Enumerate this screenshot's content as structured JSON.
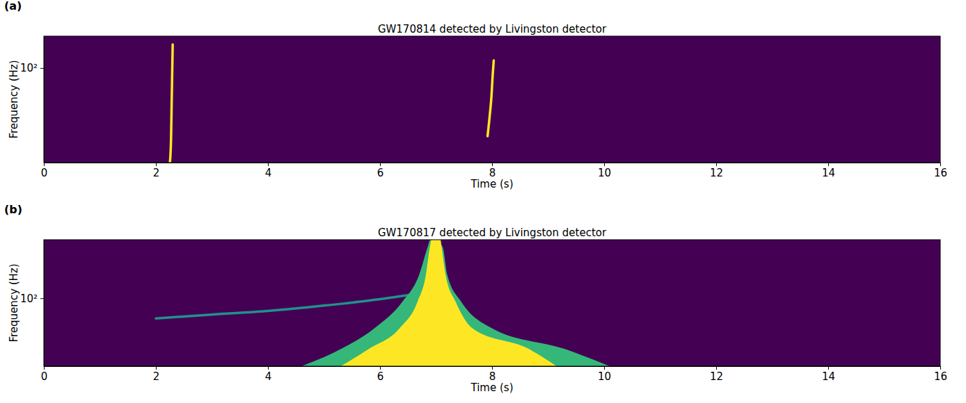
{
  "chart_data": [
    {
      "type": "line",
      "panel_label": "(a)",
      "title": "GW170814 detected by Livingston detector",
      "x_label": "Time (s)",
      "y_label": "Frequency (Hz)",
      "log": "y",
      "grid": false,
      "xlim": [
        0,
        16
      ],
      "xticks": [
        0,
        2,
        4,
        6,
        8,
        10,
        12,
        14,
        16
      ],
      "ylim": [
        30,
        150
      ],
      "yticks": [
        {
          "value": 100,
          "label": "10²"
        }
      ],
      "series": [
        {
          "type": "line",
          "color": "#fde725",
          "x": [
            2.25,
            2.27,
            2.28,
            2.29,
            2.3
          ],
          "values": [
            30,
            40,
            60,
            90,
            135
          ]
        },
        {
          "type": "line",
          "color": "#fde725",
          "x": [
            7.92,
            7.96,
            7.99,
            8.01,
            8.03
          ],
          "values": [
            42,
            55,
            70,
            90,
            110
          ]
        }
      ]
    },
    {
      "type": "line",
      "panel_label": "(b)",
      "title": "GW170817 detected by Livingston detector",
      "x_label": "Time (s)",
      "y_label": "Frequency (Hz)",
      "log": "y",
      "grid": false,
      "xlim": [
        0,
        16
      ],
      "xticks": [
        0,
        2,
        4,
        6,
        8,
        10,
        12,
        14,
        16
      ],
      "ylim": [
        20,
        400
      ],
      "yticks": [
        {
          "value": 100,
          "label": "10²"
        }
      ],
      "series": [
        {
          "type": "line",
          "color": "#21918c",
          "x": [
            2.0,
            3.0,
            4.0,
            5.0,
            6.0,
            6.6
          ],
          "values": [
            62,
            68,
            74,
            84,
            98,
            110
          ]
        },
        {
          "type": "area",
          "color": "#35b779",
          "x": [
            4.6,
            5.3,
            5.9,
            6.4,
            6.7,
            6.85,
            6.9,
            7.0,
            7.12,
            7.2,
            7.45,
            8.0,
            9.3,
            10.1
          ],
          "values": [
            20,
            30,
            49,
            92,
            175,
            335,
            400,
            400,
            335,
            175,
            92,
            49,
            30,
            20
          ]
        },
        {
          "type": "area",
          "color": "#fde725",
          "x": [
            5.3,
            5.8,
            6.35,
            6.67,
            6.82,
            6.89,
            6.92,
            7.0,
            7.08,
            7.1,
            7.17,
            7.35,
            7.65,
            8.66,
            9.15
          ],
          "values": [
            20,
            30,
            49,
            92,
            175,
            335,
            400,
            400,
            400,
            335,
            175,
            92,
            49,
            30,
            20
          ]
        }
      ]
    }
  ]
}
